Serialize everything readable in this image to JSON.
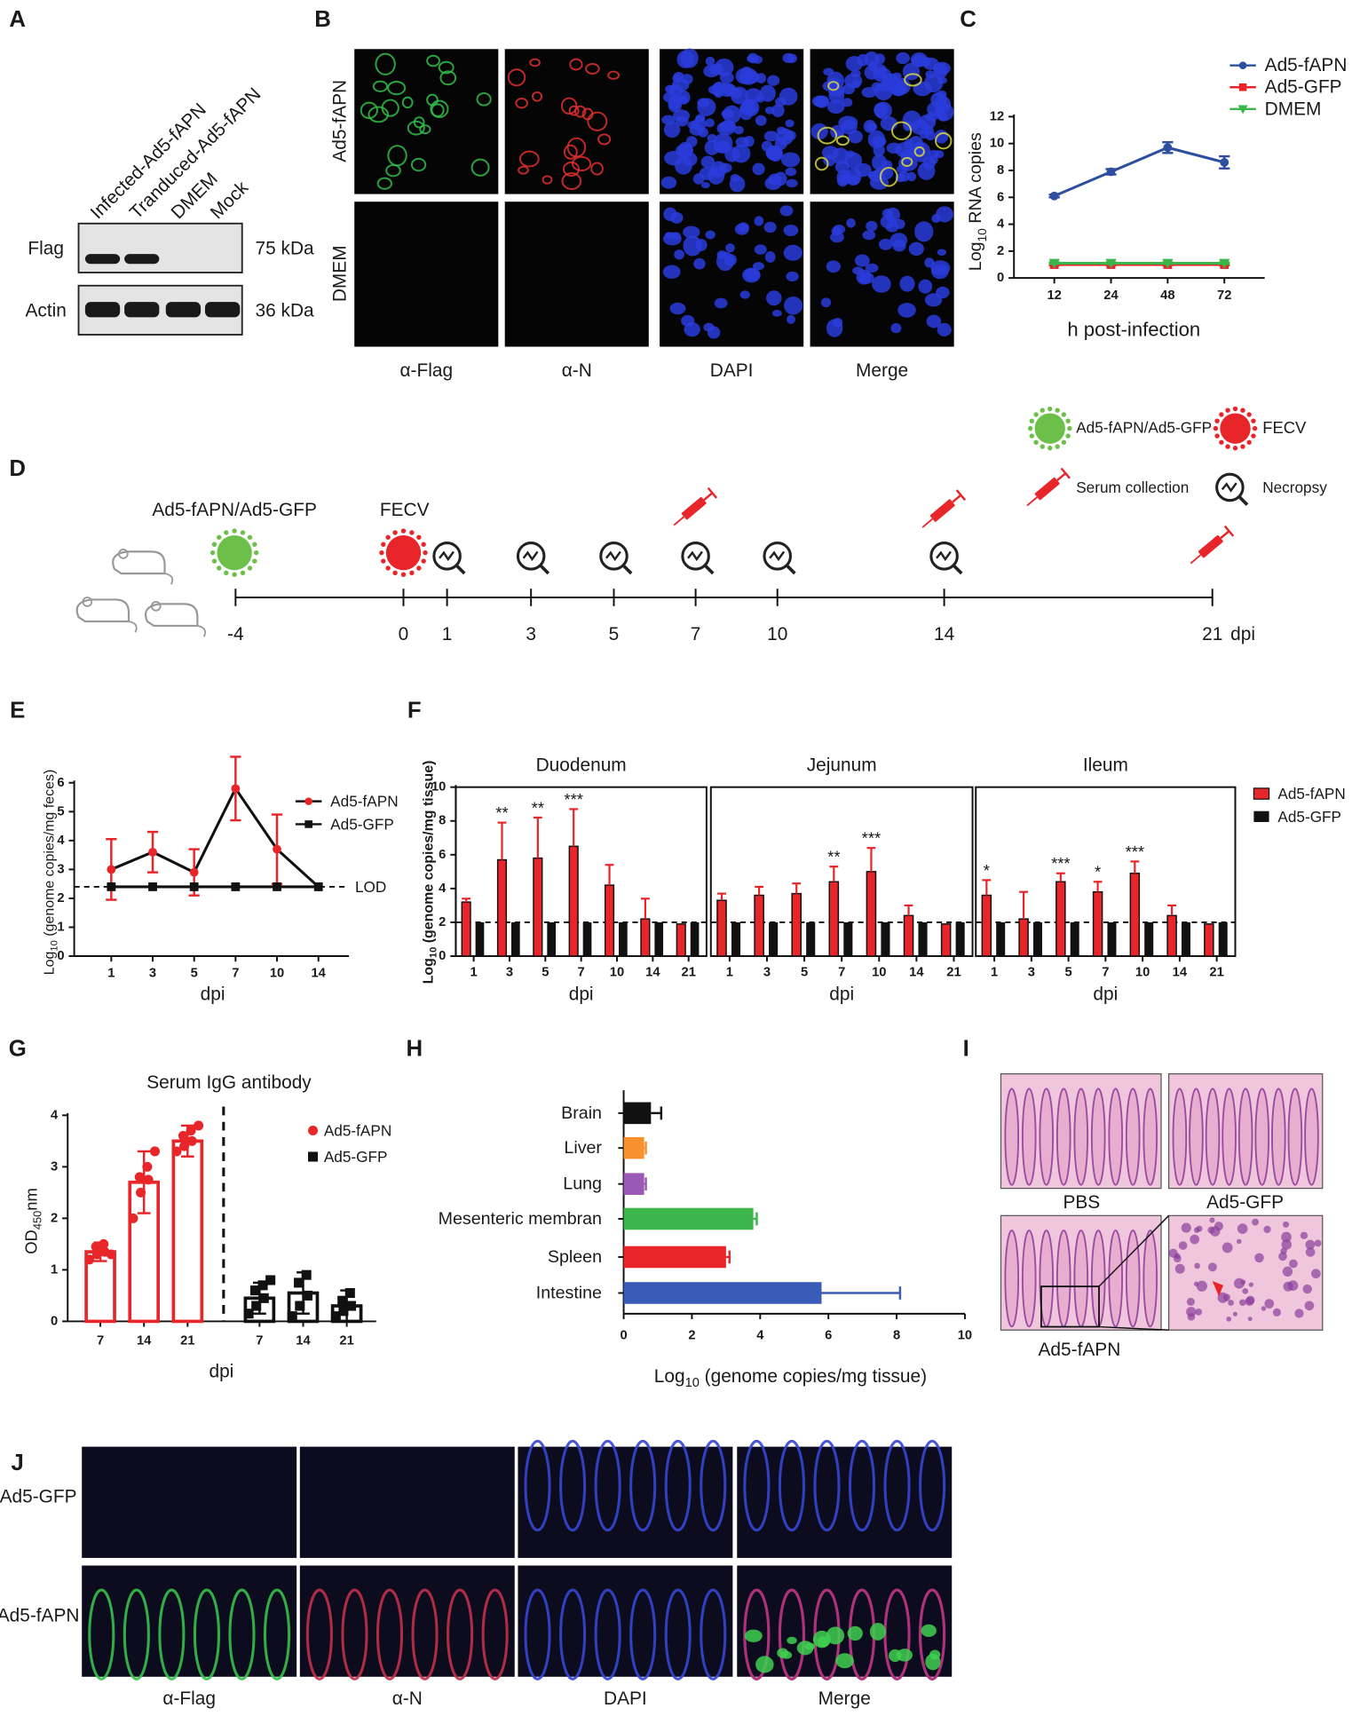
{
  "panels": [
    "A",
    "B",
    "C",
    "D",
    "E",
    "F",
    "G",
    "H",
    "I",
    "J"
  ],
  "blot": {
    "lanes": [
      "Infected-Ad5-fAPN",
      "Tranduced-Ad5-fAPN",
      "DMEM",
      "Mock"
    ],
    "rows": [
      {
        "name": "Flag",
        "size": "75 kDa"
      },
      {
        "name": "Actin",
        "size": "36 kDa"
      }
    ]
  },
  "if_cells": {
    "rows": [
      "Ad5-fAPN",
      "DMEM"
    ],
    "columns": [
      "α-Flag",
      "α-N",
      "DAPI",
      "Merge"
    ]
  },
  "timeline": {
    "agents": [
      "Ad5-fAPN/Ad5-GFP",
      "FECV"
    ],
    "ticks": [
      "-4",
      "0",
      "1",
      "3",
      "5",
      "7",
      "10",
      "14",
      "21"
    ],
    "unit": "dpi",
    "legend": [
      "Ad5-fAPN/Ad5-GFP",
      "FECV",
      "Serum collection",
      "Necropsy"
    ]
  },
  "histology": {
    "labels": [
      "PBS",
      "Ad5-GFP",
      "Ad5-fAPN"
    ]
  },
  "if_tissue": {
    "rows": [
      "Ad5-GFP",
      "Ad5-fAPN"
    ],
    "columns": [
      "α-Flag",
      "α-N",
      "DAPI",
      "Merge"
    ]
  },
  "chart_data": [
    {
      "type": "line",
      "categories": [
        "12",
        "24",
        "48",
        "72"
      ],
      "x_label": "h post-infection",
      "y_label": {
        "base": "Log",
        "sub": "10",
        "rest": " RNA copies"
      },
      "ylim": [
        0,
        12
      ],
      "yticks": [
        0,
        2,
        4,
        6,
        8,
        10,
        12
      ],
      "series": [
        {
          "name": "Ad5-fAPN",
          "color": "#2e4fa0",
          "marker": "circle",
          "values": [
            6.1,
            7.9,
            9.7,
            8.6
          ],
          "errors": [
            0.1,
            0.2,
            0.4,
            0.45
          ]
        },
        {
          "name": "Ad5-GFP",
          "color": "#e8262a",
          "marker": "square",
          "values": [
            1,
            1,
            1,
            1
          ],
          "errors": [
            0.05,
            0.05,
            0.05,
            0.05
          ]
        },
        {
          "name": "DMEM",
          "color": "#3cb54a",
          "marker": "triangle-down",
          "values": [
            1.1,
            1.1,
            1.1,
            1.1
          ],
          "errors": [
            0.05,
            0.05,
            0.05,
            0.05
          ]
        }
      ]
    },
    {
      "type": "line",
      "categories": [
        "1",
        "3",
        "5",
        "7",
        "10",
        "14"
      ],
      "x_label": "dpi",
      "y_label": {
        "base": "Log",
        "sub": "10",
        "rest": " (genome copies/mg feces)"
      },
      "ylim": [
        0,
        6
      ],
      "yticks": [
        0,
        1,
        2,
        3,
        4,
        5,
        6
      ],
      "lod": {
        "value": 2.4,
        "label": "LOD"
      },
      "series": [
        {
          "name": "Ad5-fAPN",
          "color": "#e8262a",
          "marker": "circle",
          "values": [
            3.0,
            3.6,
            2.9,
            5.8,
            3.7,
            2.4
          ],
          "errors": [
            1.05,
            0.7,
            0.8,
            1.1,
            1.2,
            0
          ]
        },
        {
          "name": "Ad5-GFP",
          "color": "#111111",
          "marker": "square",
          "values": [
            2.4,
            2.4,
            2.4,
            2.4,
            2.4,
            2.4
          ],
          "errors": [
            0,
            0,
            0,
            0,
            0,
            0
          ]
        }
      ]
    },
    {
      "type": "grouped_bar",
      "categories": [
        "1",
        "3",
        "5",
        "7",
        "10",
        "14",
        "21"
      ],
      "x_label": "dpi",
      "y_label": {
        "base": "Log",
        "sub": "10",
        "rest": " (genome copies/mg tissue)"
      },
      "ylim": [
        0,
        10
      ],
      "yticks": [
        0,
        2,
        4,
        6,
        8,
        10
      ],
      "lod": 2,
      "series": [
        {
          "name": "Ad5-fAPN",
          "color": "#e8262a"
        },
        {
          "name": "Ad5-GFP",
          "color": "#111111"
        }
      ],
      "facets": [
        {
          "title": "Duodenum",
          "values": [
            [
              3.2,
              5.7,
              5.8,
              6.5,
              4.2,
              2.2,
              1.9
            ],
            [
              2,
              2,
              2,
              2,
              2,
              2,
              2
            ]
          ],
          "errors": [
            [
              0.2,
              2.2,
              2.4,
              2.2,
              1.2,
              1.2,
              0
            ],
            [
              0,
              0,
              0,
              0,
              0,
              0,
              0
            ]
          ],
          "annotations": [
            null,
            "**",
            "**",
            "***",
            null,
            null,
            null
          ]
        },
        {
          "title": "Jejunum",
          "values": [
            [
              3.3,
              3.6,
              3.7,
              4.4,
              5.0,
              2.4,
              1.9
            ],
            [
              2,
              2,
              2,
              2,
              2,
              2,
              2
            ]
          ],
          "errors": [
            [
              0.4,
              0.5,
              0.6,
              0.9,
              1.4,
              0.6,
              0
            ],
            [
              0,
              0,
              0,
              0,
              0,
              0,
              0
            ]
          ],
          "annotations": [
            null,
            null,
            null,
            "**",
            "***",
            null,
            null
          ]
        },
        {
          "title": "Ileum",
          "values": [
            [
              3.6,
              2.2,
              4.4,
              3.8,
              4.9,
              2.4,
              1.9
            ],
            [
              2,
              2,
              2,
              2,
              2,
              2,
              2
            ]
          ],
          "errors": [
            [
              0.9,
              1.6,
              0.5,
              0.6,
              0.7,
              0.6,
              0
            ],
            [
              0,
              0,
              0,
              0,
              0,
              0,
              0
            ]
          ],
          "annotations": [
            "*",
            null,
            "***",
            "*",
            "***",
            null,
            null
          ]
        }
      ]
    },
    {
      "type": "bar",
      "title": "Serum IgG antibody",
      "categories": [
        "7",
        "14",
        "21"
      ],
      "x_label": "dpi",
      "y_label": {
        "base": "OD",
        "sub": "450",
        "rest": "nm"
      },
      "ylim": [
        0,
        4
      ],
      "yticks": [
        0,
        1,
        2,
        3,
        4
      ],
      "series": [
        {
          "name": "Ad5-fAPN",
          "color": "#e8262a",
          "marker": "circle",
          "values": [
            1.35,
            2.7,
            3.5
          ],
          "errors": [
            0.18,
            0.6,
            0.3
          ],
          "points": [
            [
              1.2,
              1.3,
              1.35,
              1.45,
              1.5,
              1.3
            ],
            [
              2.0,
              2.5,
              2.75,
              2.8,
              3.0,
              3.3
            ],
            [
              3.3,
              3.4,
              3.5,
              3.6,
              3.7,
              3.8
            ]
          ]
        },
        {
          "name": "Ad5-GFP",
          "color": "#111111",
          "marker": "square",
          "values": [
            0.45,
            0.55,
            0.3
          ],
          "errors": [
            0.3,
            0.4,
            0.3
          ],
          "points": [
            [
              0.15,
              0.3,
              0.45,
              0.6,
              0.7,
              0.8
            ],
            [
              0.1,
              0.3,
              0.5,
              0.75,
              0.9
            ],
            [
              0.1,
              0.2,
              0.3,
              0.4,
              0.55
            ]
          ]
        }
      ]
    },
    {
      "type": "hbar",
      "categories": [
        "Brain",
        "Liver",
        "Lung",
        "Mesenteric membran",
        "Spleen",
        "Intestine"
      ],
      "values": [
        0.8,
        0.6,
        0.6,
        3.8,
        3.0,
        5.8
      ],
      "errors": [
        0.3,
        0.05,
        0.05,
        0.1,
        0.1,
        2.3
      ],
      "colors": [
        "#111111",
        "#f7902d",
        "#9b59b6",
        "#3cb54a",
        "#e8262a",
        "#3a5bb8"
      ],
      "x_label": {
        "base": "Log",
        "sub": "10",
        "rest": " (genome copies/mg tissue)"
      },
      "xlim": [
        0,
        10
      ],
      "xticks": [
        0,
        2,
        4,
        6,
        8,
        10
      ]
    }
  ]
}
